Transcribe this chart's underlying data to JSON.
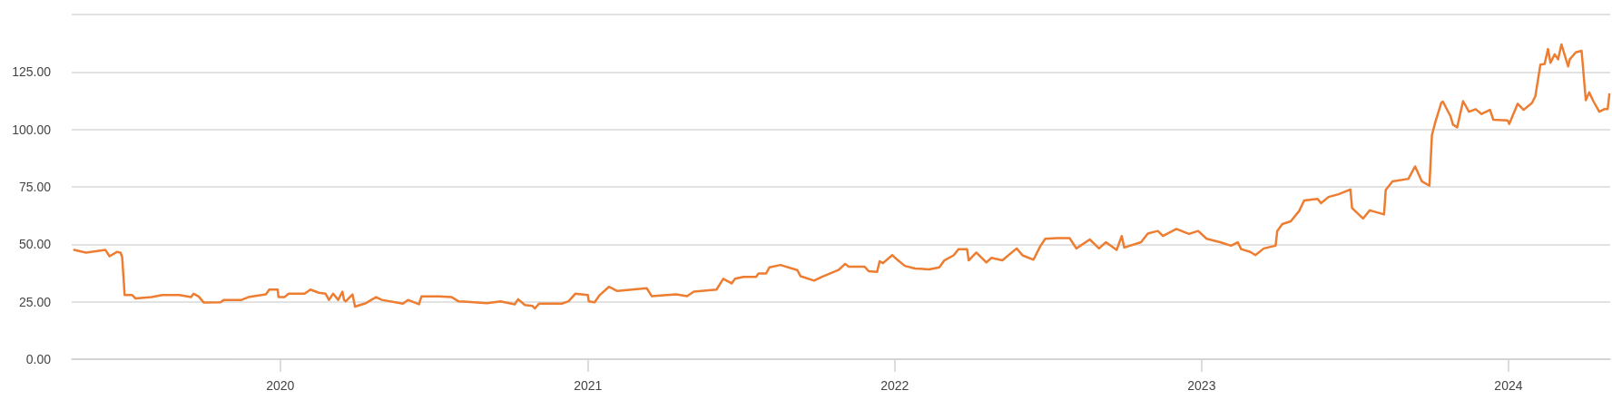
{
  "chart_data": {
    "type": "line",
    "x": [
      "2019-05-01",
      "2019-05-15",
      "2019-06-07",
      "2019-06-12",
      "2019-06-21",
      "2019-06-25",
      "2019-06-27",
      "2019-06-30",
      "2019-07-09",
      "2019-07-13",
      "2019-08-01",
      "2019-08-14",
      "2019-09-03",
      "2019-09-17",
      "2019-09-20",
      "2019-09-26",
      "2019-10-02",
      "2019-10-22",
      "2019-10-26",
      "2019-11-16",
      "2019-11-24",
      "2019-12-15",
      "2019-12-19",
      "2019-12-29",
      "2019-12-30",
      "2020-01-06",
      "2020-01-11",
      "2020-01-30",
      "2020-02-06",
      "2020-02-16",
      "2020-02-24",
      "2020-02-28",
      "2020-03-04",
      "2020-03-10",
      "2020-03-15",
      "2020-03-17",
      "2020-03-19",
      "2020-03-27",
      "2020-03-30",
      "2020-04-12",
      "2020-04-24",
      "2020-05-01",
      "2020-05-26",
      "2020-06-01",
      "2020-06-14",
      "2020-06-17",
      "2020-07-08",
      "2020-07-23",
      "2020-07-31",
      "2020-09-03",
      "2020-09-19",
      "2020-10-06",
      "2020-10-10",
      "2020-10-18",
      "2020-10-27",
      "2020-10-30",
      "2020-11-04",
      "2020-12-01",
      "2020-12-09",
      "2020-12-17",
      "2021-01-01",
      "2021-01-02",
      "2021-01-09",
      "2021-01-15",
      "2021-01-26",
      "2021-02-05",
      "2021-03-12",
      "2021-03-18",
      "2021-04-16",
      "2021-04-29",
      "2021-05-07",
      "2021-06-03",
      "2021-06-11",
      "2021-06-21",
      "2021-06-25",
      "2021-07-05",
      "2021-07-20",
      "2021-07-23",
      "2021-08-01",
      "2021-08-05",
      "2021-08-18",
      "2021-09-07",
      "2021-09-11",
      "2021-09-27",
      "2021-10-06",
      "2021-10-26",
      "2021-11-03",
      "2021-11-07",
      "2021-11-26",
      "2021-12-01",
      "2021-12-11",
      "2021-12-14",
      "2021-12-18",
      "2021-12-29",
      "2022-01-04",
      "2022-01-13",
      "2022-01-25",
      "2022-02-11",
      "2022-02-23",
      "2022-03-01",
      "2022-03-12",
      "2022-03-18",
      "2022-03-28",
      "2022-03-30",
      "2022-04-08",
      "2022-04-20",
      "2022-04-26",
      "2022-05-09",
      "2022-05-26",
      "2022-06-02",
      "2022-06-15",
      "2022-06-23",
      "2022-06-29",
      "2022-07-13",
      "2022-07-28",
      "2022-08-05",
      "2022-08-21",
      "2022-09-01",
      "2022-09-09",
      "2022-09-22",
      "2022-09-28",
      "2022-10-01",
      "2022-10-21",
      "2022-10-29",
      "2022-11-10",
      "2022-11-16",
      "2022-12-02",
      "2022-12-17",
      "2022-12-28",
      "2023-01-07",
      "2023-01-23",
      "2023-02-05",
      "2023-02-13",
      "2023-02-17",
      "2023-02-28",
      "2023-03-06",
      "2023-03-16",
      "2023-03-30",
      "2023-04-01",
      "2023-04-07",
      "2023-04-17",
      "2023-04-27",
      "2023-05-03",
      "2023-05-19",
      "2023-05-23",
      "2023-06-01",
      "2023-06-13",
      "2023-06-27",
      "2023-06-29",
      "2023-07-12",
      "2023-07-20",
      "2023-08-06",
      "2023-08-08",
      "2023-08-16",
      "2023-09-04",
      "2023-09-12",
      "2023-09-20",
      "2023-09-29",
      "2023-10-02",
      "2023-10-06",
      "2023-10-13",
      "2023-10-15",
      "2023-10-24",
      "2023-10-27",
      "2023-11-01",
      "2023-11-08",
      "2023-11-15",
      "2023-11-23",
      "2023-11-30",
      "2023-12-10",
      "2023-12-14",
      "2023-12-31",
      "2024-01-02",
      "2024-01-12",
      "2024-01-19",
      "2024-01-29",
      "2024-02-02",
      "2024-02-08",
      "2024-02-13",
      "2024-02-17",
      "2024-02-20",
      "2024-02-25",
      "2024-02-29",
      "2024-03-04",
      "2024-03-12",
      "2024-03-14",
      "2024-03-21",
      "2024-03-28",
      "2024-04-02",
      "2024-04-06",
      "2024-04-11",
      "2024-04-18",
      "2024-04-24",
      "2024-04-28",
      "2024-04-30"
    ],
    "series": [
      {
        "color": "#ed7d31",
        "values": [
          47.6,
          46.4,
          47.6,
          44.8,
          46.7,
          46.4,
          44.5,
          27.9,
          27.9,
          26.4,
          27,
          27.9,
          27.9,
          27,
          28.5,
          27.3,
          24.7,
          24.8,
          25.8,
          25.8,
          27,
          28.2,
          30.3,
          30.3,
          27,
          27,
          28.5,
          28.5,
          30.3,
          28.9,
          28.5,
          25.8,
          28.5,
          25.8,
          29.4,
          25.8,
          25.2,
          28.2,
          22.9,
          24.4,
          27,
          25.8,
          24.2,
          25.8,
          23.9,
          27.3,
          27.3,
          27,
          25.2,
          24.4,
          25.2,
          23.9,
          26.1,
          23.6,
          23.2,
          22.1,
          24.2,
          24.2,
          25.2,
          28.5,
          27.9,
          25.2,
          24.8,
          27.9,
          31.5,
          29.7,
          30.9,
          27.4,
          28.2,
          27.4,
          29.4,
          30.3,
          35,
          33,
          35,
          35.8,
          35.8,
          37.3,
          37.3,
          40,
          41,
          38.8,
          36.1,
          34.2,
          35.8,
          38.8,
          41.5,
          40.3,
          40.3,
          38.3,
          38,
          42.6,
          41.8,
          45.3,
          43.3,
          40.6,
          39.5,
          39.1,
          40,
          43,
          45.2,
          47.9,
          47.9,
          43,
          46.4,
          42.1,
          44.1,
          43,
          48.2,
          45.2,
          43.3,
          49.1,
          52.4,
          52.7,
          52.7,
          48.2,
          52.1,
          48.2,
          50.9,
          47.6,
          53.6,
          48.6,
          50.9,
          54.7,
          55.8,
          53.6,
          56.7,
          54.5,
          55.8,
          52.4,
          50.9,
          49.4,
          50.9,
          47.9,
          46.7,
          45.3,
          48.2,
          49.4,
          55.8,
          58.8,
          60,
          64.5,
          69.1,
          69.8,
          67.9,
          70.6,
          71.8,
          73.9,
          65.8,
          61.2,
          64.8,
          63,
          73.6,
          77.4,
          78.5,
          83.9,
          77.4,
          75.5,
          97.6,
          103.2,
          111.5,
          112.1,
          105.8,
          102.1,
          100.9,
          112.3,
          107.7,
          108.8,
          106.7,
          108.5,
          104.2,
          103.9,
          102.4,
          111.2,
          108.5,
          111.5,
          114.5,
          128.2,
          128.5,
          135,
          129,
          132.7,
          130.5,
          137,
          127.4,
          130.5,
          133.5,
          134.2,
          112.7,
          116.1,
          112.3,
          107.7,
          108.8,
          108.8,
          115.3
        ]
      }
    ],
    "xlim": [
      "2019-04-28",
      "2024-05-01"
    ],
    "xticks": [
      "2020",
      "2021",
      "2022",
      "2023",
      "2024"
    ],
    "ylim": [
      0,
      150
    ],
    "yticks": [
      {
        "value": 0,
        "label": "0.00"
      },
      {
        "value": 25,
        "label": "25.00"
      },
      {
        "value": 50,
        "label": "50.00"
      },
      {
        "value": 75,
        "label": "75.00"
      },
      {
        "value": 100,
        "label": "100.00"
      },
      {
        "value": 125,
        "label": "125.00"
      },
      {
        "value": 150,
        "label": null
      }
    ],
    "grid": "y",
    "marker": "none",
    "line_style": "solid"
  }
}
